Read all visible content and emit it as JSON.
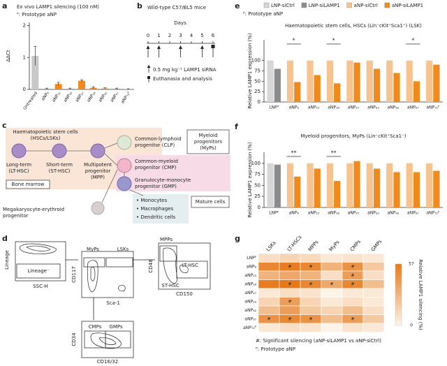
{
  "panel_labels": [
    "a",
    "b",
    "c",
    "d",
    "e",
    "f",
    "g"
  ],
  "chart_data": [
    {
      "type": "bar",
      "title": "Ex vivo LAMP1 silencing (100 nM)",
      "note": "ᴾ: Prototype aNP",
      "ylabel": "ΔΔCt",
      "categories": [
        "Untreated",
        "aNP₈",
        "aNP₁₅",
        "aNP₁₈",
        "aNP₂₇",
        "aNP₂₉",
        "aNP₄₂",
        "aNP₆₇",
        "aNP₇₂ᴾ"
      ],
      "values": [
        1.05,
        0.02,
        0.17,
        0.02,
        0.27,
        0.05,
        0.03,
        0.02,
        0.01
      ],
      "errors": [
        0.3,
        0.02,
        0.05,
        0.02,
        0.03,
        0.03,
        0.02,
        0.02,
        0.01
      ],
      "colors": [
        "#c8c8c8",
        "#f08a1c",
        "#f08a1c",
        "#f08a1c",
        "#f08a1c",
        "#f08a1c",
        "#f08a1c",
        "#f08a1c",
        "#f08a1c"
      ],
      "ylim": [
        0,
        2.1
      ],
      "yticks": [
        0,
        1,
        2
      ]
    },
    {
      "type": "bar",
      "title": "Haematopoietic stem cells, HSCs (Lin⁻cKit⁺Sca1⁺) (LSK)",
      "note": "ᴾ: Prototype aNP",
      "ylabel": "Relative LAMP1 expression (%)",
      "categories": [
        "LNPᴾ",
        "aNP₈",
        "aNP₁₅",
        "aNP₁₈",
        "aNP₂₇",
        "aNP₂₉",
        "aNP₄₂",
        "aNP₆₇",
        "aNP₇₂ᴾ"
      ],
      "series": [
        {
          "name": "LNP-siCtrl",
          "color": "#d6d6d6",
          "values": [
            100,
            null,
            null,
            null,
            null,
            null,
            null,
            null,
            null
          ]
        },
        {
          "name": "LNP-siLAMP1",
          "color": "#8c8c8c",
          "values": [
            80,
            null,
            null,
            null,
            null,
            null,
            null,
            null,
            null
          ]
        },
        {
          "name": "aNP-siCtrl",
          "color": "#f6c491",
          "values": [
            null,
            100,
            100,
            100,
            100,
            100,
            100,
            100,
            100
          ]
        },
        {
          "name": "aNP-siLAMP1",
          "color": "#f08a1c",
          "values": [
            null,
            48,
            65,
            45,
            95,
            80,
            70,
            50,
            90
          ]
        }
      ],
      "significance": [
        null,
        "*",
        null,
        "*",
        null,
        null,
        null,
        "*",
        null
      ],
      "ylim": [
        0,
        150
      ],
      "yticks": [
        0,
        25,
        50,
        75,
        100
      ],
      "legend": "top"
    },
    {
      "type": "bar",
      "title": "Myeloid progenitors, MyPs (Lin⁻cKit⁺Sca1⁻)",
      "ylabel": "Relative LAMP1 expression (%)",
      "categories": [
        "LNPᴾ",
        "aNP₈",
        "aNP₁₅",
        "aNP₁₈",
        "aNP₂₇",
        "aNP₂₉",
        "aNP₄₂",
        "aNP₆₇",
        "aNP₇₂ᴾ"
      ],
      "series": [
        {
          "color": "#d6d6d6",
          "values": [
            100,
            null,
            null,
            null,
            null,
            null,
            null,
            null,
            null
          ]
        },
        {
          "color": "#8c8c8c",
          "values": [
            97,
            null,
            null,
            null,
            null,
            null,
            null,
            null,
            null
          ]
        },
        {
          "color": "#f6c491",
          "values": [
            null,
            100,
            100,
            100,
            100,
            100,
            100,
            100,
            100
          ]
        },
        {
          "color": "#f08a1c",
          "values": [
            null,
            70,
            88,
            60,
            105,
            88,
            80,
            80,
            83
          ]
        }
      ],
      "significance": [
        null,
        "**",
        null,
        "**",
        null,
        null,
        null,
        null,
        null
      ],
      "ylim": [
        0,
        125
      ],
      "yticks": [
        0,
        25,
        50,
        75,
        100
      ]
    },
    {
      "type": "heatmap",
      "columns": [
        "LSKs",
        "LT-HSCs",
        "MPPs",
        "MyPs",
        "CMPs",
        "GMPs"
      ],
      "rows": [
        "LNPᴾ",
        "aNP₈",
        "aNP₁₅",
        "aNP₁₈",
        "aNP₂₇",
        "aNP₂₉",
        "aNP₄₂",
        "aNP₆₇",
        "aNP₇₂ᴾ"
      ],
      "values": [
        [
          10,
          15,
          12,
          5,
          8,
          5
        ],
        [
          50,
          55,
          50,
          30,
          45,
          20
        ],
        [
          30,
          35,
          30,
          10,
          40,
          10
        ],
        [
          55,
          57,
          50,
          35,
          50,
          25
        ],
        [
          5,
          10,
          8,
          0,
          5,
          5
        ],
        [
          15,
          40,
          15,
          5,
          10,
          5
        ],
        [
          25,
          40,
          20,
          15,
          25,
          10
        ],
        [
          45,
          50,
          45,
          25,
          40,
          20
        ],
        [
          5,
          10,
          8,
          0,
          8,
          5
        ]
      ],
      "significance": [
        [
          null,
          null,
          null,
          null,
          null,
          null
        ],
        [
          null,
          "#",
          "#",
          null,
          "#",
          null
        ],
        [
          null,
          null,
          null,
          null,
          "#",
          null
        ],
        [
          null,
          "#",
          "#",
          "#",
          "#",
          null
        ],
        [
          null,
          null,
          null,
          null,
          null,
          null
        ],
        [
          null,
          "#",
          null,
          null,
          null,
          null
        ],
        [
          null,
          null,
          null,
          null,
          null,
          null
        ],
        [
          "#",
          "#",
          "#",
          null,
          "#",
          null
        ],
        [
          null,
          null,
          null,
          null,
          null,
          null
        ]
      ],
      "colors": [
        "#fdf4e9",
        "#e5791a"
      ],
      "clim": [
        0,
        57
      ],
      "cticks": [
        0,
        57
      ],
      "colorbar_label": "Relative LAMP1 silencing (%)",
      "footnotes": [
        "#: Significant silencing (aNP-siLAMP1 vs aNP-siCtrl)",
        "ᴾ: Prototype aNP"
      ]
    }
  ],
  "timeline": {
    "title": "Wild-type C57/BL5 mice",
    "axis_label": "Days",
    "days": [
      0,
      1,
      2,
      3,
      4,
      5,
      6
    ],
    "injection_days": [
      0,
      1,
      3,
      5
    ],
    "end_day": 6,
    "injection_label": "0.5 mg kg⁻¹ LAMP1 siRNA",
    "end_label": "Euthanasia and analysis"
  },
  "hierarchy": {
    "hsc_title": [
      "Haematopoietic stem cells",
      "(HSCs/LSKs)"
    ],
    "lt": [
      "Long-term",
      "(LT-HSC)"
    ],
    "st": [
      "Short-term",
      "(ST-HSC)"
    ],
    "mpp": [
      "Multipotent",
      "progenitor",
      "(MPP)"
    ],
    "bone_marrow": "Bone marrow",
    "clp": [
      "Common-lymphoid",
      "progenitor (CLP)"
    ],
    "cmp": [
      "Common-myeloid",
      "progenitor (CMP)"
    ],
    "gmp": [
      "Granulocyte-monocyte",
      "progenitor (GMP)"
    ],
    "myps": [
      "Myeloid",
      "progenitors",
      "(MyPs)"
    ],
    "mep": [
      "Megakaryocyte-erythroid",
      "progenitor"
    ],
    "mature_types": [
      "• Monocytes",
      "• Macrophages",
      "• Dendritic cells"
    ],
    "mature": "Mature cells"
  },
  "gating": {
    "lineage": "Lineage",
    "ssc": "SSC-H",
    "lin_neg": "Lineage⁻",
    "cd117": "CD117",
    "sca1": "Sca-1",
    "myps": "MyPs",
    "lsks": "LSKs",
    "cd48": "CD48",
    "cd150": "CD150",
    "mpps": "MPPs",
    "lt": "LT-HSC",
    "st": "ST-HSC",
    "cd34": "CD34",
    "cd1632": "CD16/32",
    "cmps": "CMPs",
    "gmps": "GMPs"
  }
}
